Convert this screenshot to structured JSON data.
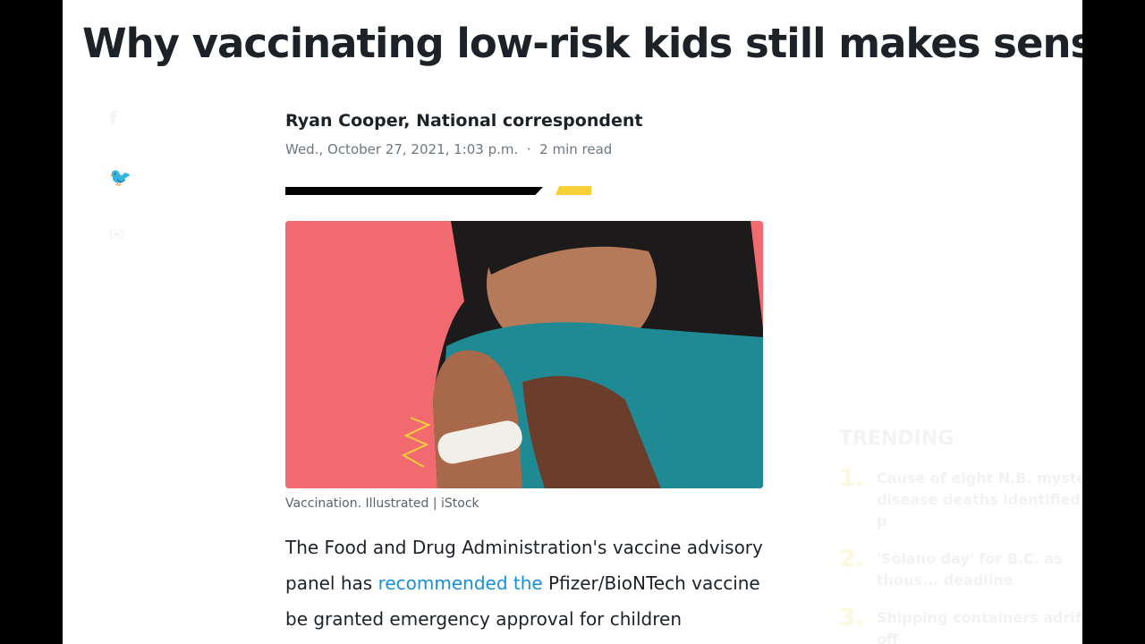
{
  "article": {
    "title": "Why vaccinating low-risk kids still makes sense",
    "author": "Ryan Cooper, National correspondent",
    "date": "Wed., October 27, 2021, 1:03 p.m.",
    "separator": "·",
    "read_time": "2 min read",
    "image_caption": "Vaccination. Illustrated | iStock",
    "body_pre": "The Food and Drug Administration's vaccine advisory panel has ",
    "body_link": "recommended the",
    "body_post": " Pfizer/BioNTech vaccine be granted emergency approval for children"
  },
  "share": {
    "icons": [
      "facebook-icon",
      "twitter-icon",
      "email-icon"
    ]
  },
  "trending": {
    "heading": "TRENDING",
    "items": [
      {
        "num": "1.",
        "text": "Cause of eight N.B. mystery disease deaths identified by p"
      },
      {
        "num": "2.",
        "text": "'Solano day' for B.C. as thous... deadline"
      },
      {
        "num": "3.",
        "text": "Shipping containers adrift off"
      }
    ]
  },
  "colors": {
    "accent_yellow": "#f7d038",
    "link": "#188fd9",
    "hero_bg": "#f06a70"
  }
}
